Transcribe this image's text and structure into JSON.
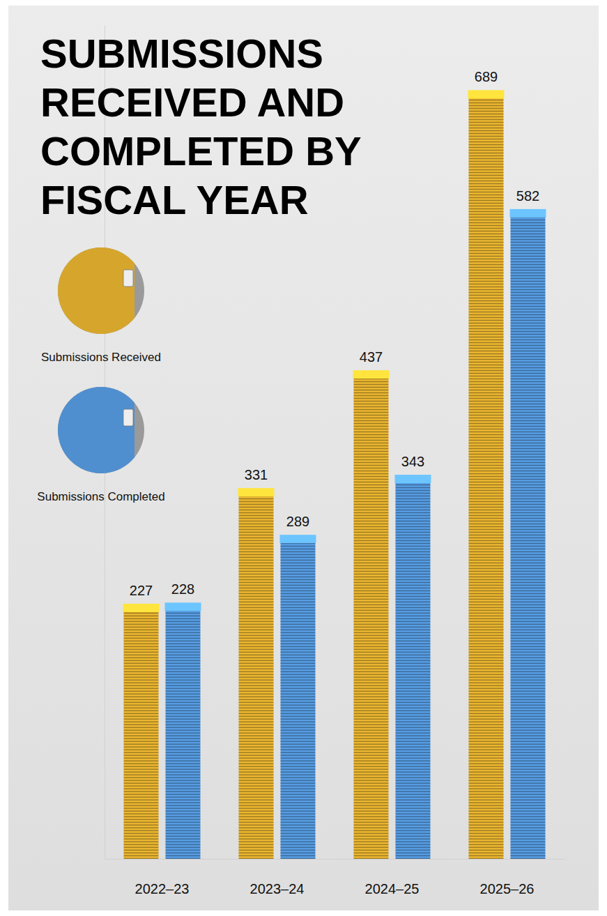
{
  "chart_data": {
    "type": "bar",
    "title": "SUBMISSIONS RECEIVED AND COMPLETED BY FISCAL YEAR",
    "categories": [
      "2022–23",
      "2023–24",
      "2024–25",
      "2025–26"
    ],
    "series": [
      {
        "name": "Submissions Received",
        "color": "#d6a62c",
        "values": [
          227,
          331,
          437,
          689
        ]
      },
      {
        "name": "Submissions Completed",
        "color": "#4f8fcf",
        "values": [
          228,
          289,
          343,
          582
        ]
      }
    ],
    "ylim": [
      0,
      750
    ],
    "yticks": [],
    "data_labels": true,
    "tick_labels": "x",
    "legend": "left"
  }
}
